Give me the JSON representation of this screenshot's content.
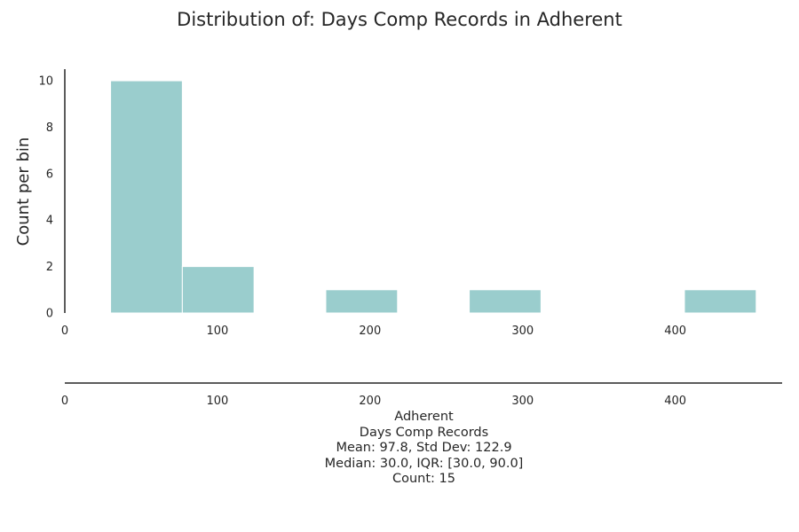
{
  "chart_data": {
    "type": "bar",
    "title": "Distribution of: Days Comp Records in Adherent",
    "xlabel": "",
    "ylabel": "Count per bin",
    "bins": [
      {
        "x0": 30,
        "x1": 77,
        "count": 10
      },
      {
        "x0": 77,
        "x1": 124,
        "count": 2
      },
      {
        "x0": 124,
        "x1": 171,
        "count": 0
      },
      {
        "x0": 171,
        "x1": 218,
        "count": 1
      },
      {
        "x0": 218,
        "x1": 265,
        "count": 0
      },
      {
        "x0": 265,
        "x1": 312,
        "count": 1
      },
      {
        "x0": 312,
        "x1": 359,
        "count": 0
      },
      {
        "x0": 359,
        "x1": 406,
        "count": 0
      },
      {
        "x0": 406,
        "x1": 453,
        "count": 1
      }
    ],
    "xlim": [
      0,
      470
    ],
    "ylim": [
      0,
      10.5
    ],
    "xticks": [
      0,
      100,
      200,
      300,
      400
    ],
    "yticks": [
      0,
      2,
      4,
      6,
      8,
      10
    ],
    "bar_color": "#9acdcd",
    "grid": false,
    "legend": "none"
  },
  "summary": {
    "group": "Adherent",
    "variable": "Days Comp Records",
    "mean_sd": "Mean: 97.8, Std Dev: 122.9",
    "median_iqr": "Median: 30.0, IQR: [30.0, 90.0]",
    "count": "Count: 15"
  }
}
